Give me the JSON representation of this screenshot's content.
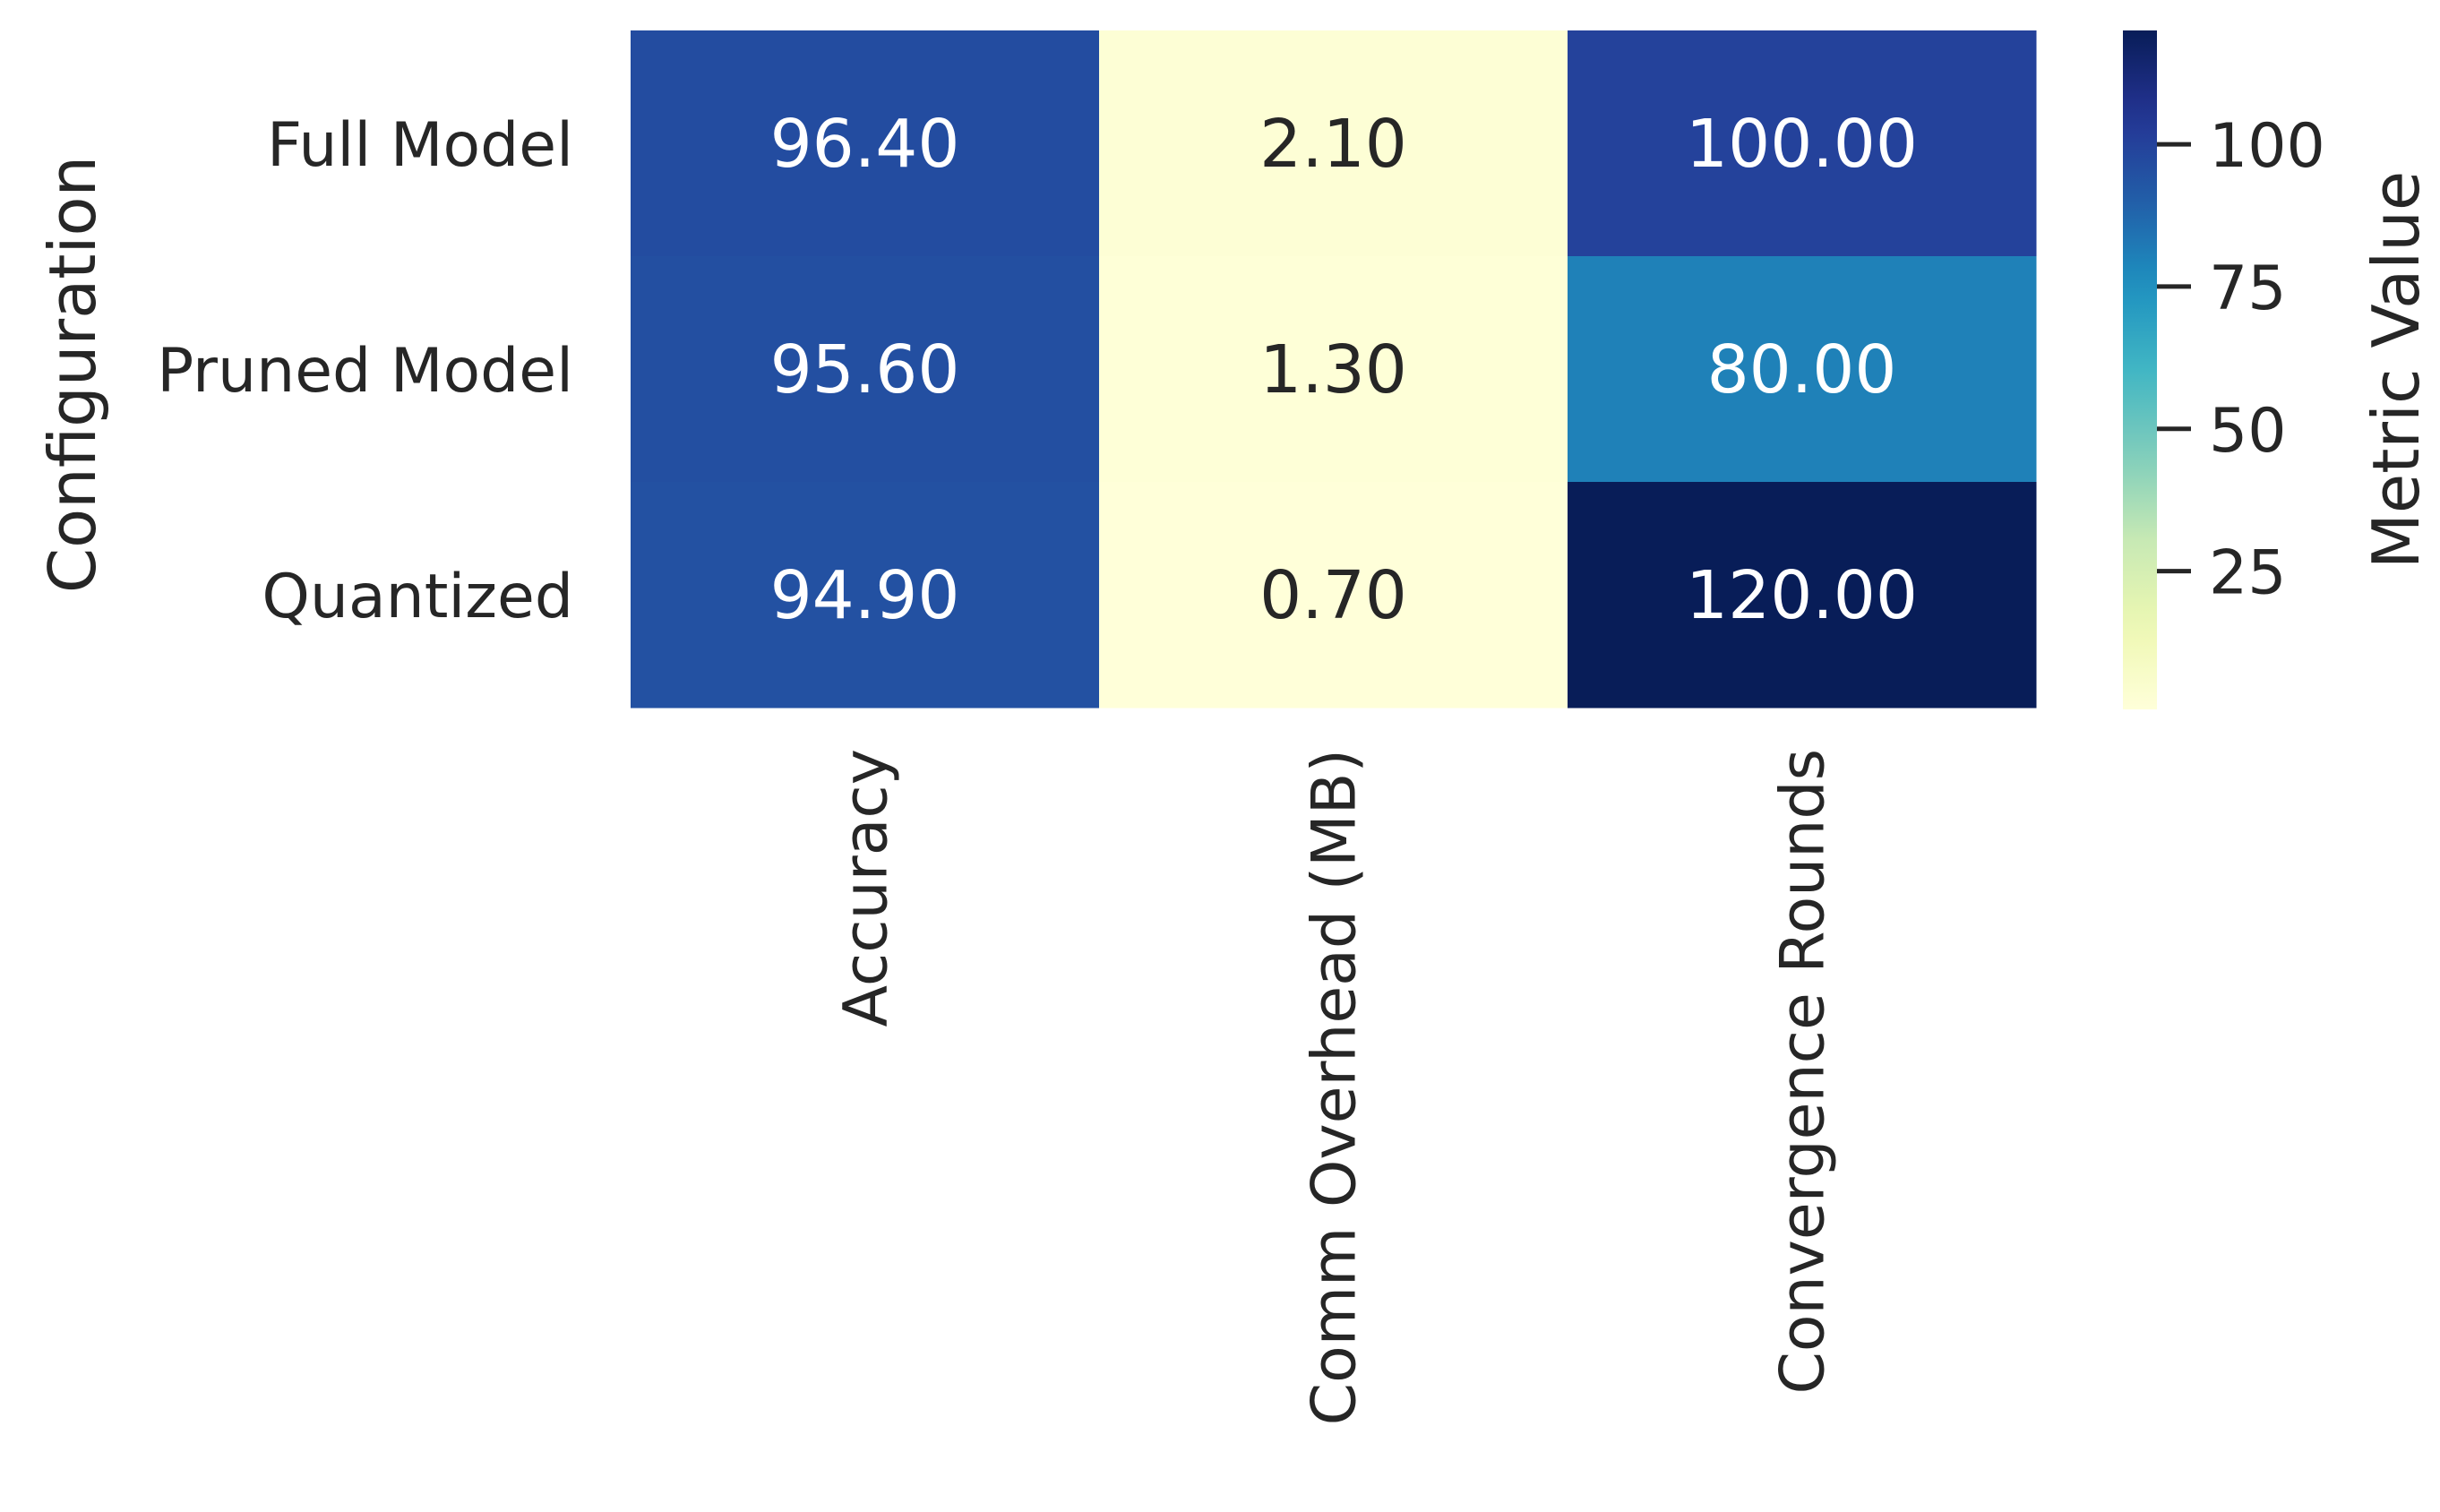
{
  "chart_data": {
    "type": "heatmap",
    "title": "",
    "ylabel": "Configuration",
    "xlabel": "",
    "rows": [
      "Full Model",
      "Pruned Model",
      "Quantized"
    ],
    "columns": [
      "Accuracy",
      "Comm Overhead (MB)",
      "Convergence Rounds"
    ],
    "values": [
      [
        96.4,
        2.1,
        100.0
      ],
      [
        95.6,
        1.3,
        80.0
      ],
      [
        94.9,
        0.7,
        120.0
      ]
    ],
    "value_format": "2 decimals",
    "colormap": "YlGnBu",
    "colorbar": {
      "label": "Metric Value",
      "range": [
        0.7,
        120.0
      ],
      "ticks": [
        25,
        50,
        75,
        100
      ]
    }
  }
}
